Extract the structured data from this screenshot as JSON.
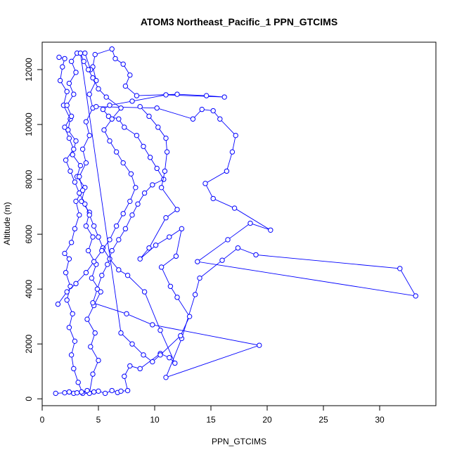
{
  "chart_data": {
    "type": "line",
    "title": "ATOM3 Northeast_Pacific_1 PPN_GTCIMS",
    "xlabel": "PPN_GTCIMS",
    "ylabel": "Altitude (m)",
    "xlim": [
      0,
      35
    ],
    "ylim": [
      -250,
      13000
    ],
    "x_ticks": [
      0,
      5,
      10,
      15,
      20,
      25,
      30
    ],
    "y_ticks": [
      0,
      2000,
      4000,
      6000,
      8000,
      10000,
      12000
    ],
    "grid": false,
    "legend": "none",
    "series": [
      {
        "color": "#0000ff",
        "points": [
          [
            1.5,
            12450
          ],
          [
            2.0,
            12400
          ],
          [
            1.8,
            12100
          ],
          [
            1.6,
            11600
          ],
          [
            2.2,
            11200
          ],
          [
            1.9,
            10700
          ],
          [
            2.5,
            10200
          ],
          [
            2.3,
            9800
          ],
          [
            3.0,
            9400
          ],
          [
            2.7,
            8900
          ],
          [
            3.4,
            8500
          ],
          [
            3.1,
            8100
          ],
          [
            3.8,
            7700
          ],
          [
            3.5,
            7200
          ],
          [
            4.2,
            6800
          ],
          [
            3.9,
            6300
          ],
          [
            4.5,
            5900
          ],
          [
            4.1,
            5400
          ],
          [
            4.8,
            4900
          ],
          [
            4.4,
            4400
          ],
          [
            5.2,
            3900
          ],
          [
            4.6,
            3400
          ],
          [
            4.0,
            2900
          ],
          [
            4.7,
            2400
          ],
          [
            4.3,
            1900
          ],
          [
            5.0,
            1400
          ],
          [
            4.5,
            900
          ],
          [
            4.2,
            200
          ],
          [
            3.6,
            200
          ],
          [
            3.2,
            600
          ],
          [
            2.8,
            1100
          ],
          [
            2.6,
            1600
          ],
          [
            2.9,
            2100
          ],
          [
            2.4,
            2600
          ],
          [
            2.7,
            3100
          ],
          [
            2.2,
            3600
          ],
          [
            2.5,
            4100
          ],
          [
            2.1,
            4600
          ],
          [
            2.4,
            5100
          ],
          [
            2.0,
            5300
          ],
          [
            2.6,
            5700
          ],
          [
            2.9,
            6200
          ],
          [
            3.3,
            6700
          ],
          [
            3.0,
            7200
          ],
          [
            3.6,
            7600
          ],
          [
            3.3,
            8100
          ],
          [
            3.9,
            8600
          ],
          [
            3.6,
            9100
          ],
          [
            4.2,
            9600
          ],
          [
            3.9,
            10100
          ],
          [
            4.5,
            10600
          ],
          [
            4.2,
            11100
          ],
          [
            4.8,
            11600
          ],
          [
            4.5,
            12100
          ],
          [
            4.7,
            12550
          ],
          [
            6.2,
            12750
          ],
          [
            6.5,
            12400
          ],
          [
            7.2,
            12200
          ],
          [
            7.8,
            11800
          ],
          [
            7.4,
            11400
          ],
          [
            8.4,
            11050
          ],
          [
            12.0,
            11100
          ],
          [
            14.6,
            11050
          ],
          [
            16.2,
            11000
          ],
          [
            11.0,
            11080
          ],
          [
            8.0,
            10850
          ],
          [
            6.0,
            10700
          ],
          [
            5.4,
            10550
          ],
          [
            5.9,
            10300
          ],
          [
            6.8,
            10200
          ],
          [
            7.3,
            9900
          ],
          [
            8.4,
            9600
          ],
          [
            9.0,
            9200
          ],
          [
            9.6,
            8800
          ],
          [
            10.2,
            8400
          ],
          [
            10.8,
            8000
          ],
          [
            9.8,
            7800
          ],
          [
            9.1,
            7500
          ],
          [
            8.5,
            7100
          ],
          [
            8.0,
            6700
          ],
          [
            7.4,
            6200
          ],
          [
            6.8,
            5800
          ],
          [
            6.2,
            5400
          ],
          [
            5.8,
            4900
          ],
          [
            5.3,
            4500
          ],
          [
            4.9,
            4000
          ],
          [
            4.5,
            3500
          ],
          [
            7.5,
            3100
          ],
          [
            9.8,
            2700
          ],
          [
            19.3,
            1950
          ],
          [
            11.0,
            780
          ],
          [
            12.4,
            2200
          ],
          [
            13.6,
            3800
          ],
          [
            14.0,
            4400
          ],
          [
            16.0,
            5050
          ],
          [
            17.4,
            5500
          ],
          [
            19.0,
            5250
          ],
          [
            31.8,
            4750
          ],
          [
            33.2,
            3750
          ],
          [
            13.8,
            5000
          ],
          [
            16.5,
            5800
          ],
          [
            18.5,
            6400
          ],
          [
            20.3,
            6150
          ],
          [
            17.1,
            6950
          ],
          [
            15.2,
            7300
          ],
          [
            14.5,
            7850
          ],
          [
            16.4,
            8300
          ],
          [
            16.9,
            9000
          ],
          [
            17.2,
            9600
          ],
          [
            15.8,
            10200
          ],
          [
            15.2,
            10500
          ],
          [
            14.2,
            10550
          ],
          [
            13.4,
            10200
          ],
          [
            10.2,
            10600
          ],
          [
            4.8,
            10650
          ]
        ]
      },
      {
        "color": "#0000ff",
        "points": [
          [
            1.2,
            200
          ],
          [
            2.0,
            220
          ],
          [
            2.4,
            250
          ],
          [
            2.8,
            200
          ],
          [
            3.1,
            220
          ],
          [
            3.5,
            250
          ],
          [
            4.0,
            300
          ],
          [
            4.6,
            250
          ],
          [
            5.0,
            280
          ],
          [
            5.6,
            200
          ],
          [
            6.2,
            300
          ],
          [
            6.7,
            230
          ],
          [
            7.0,
            280
          ],
          [
            7.6,
            300
          ],
          [
            7.3,
            820
          ],
          [
            7.8,
            1200
          ],
          [
            8.7,
            1100
          ],
          [
            10.5,
            1650
          ],
          [
            11.3,
            1500
          ],
          [
            11.8,
            1300
          ],
          [
            10.5,
            2500
          ],
          [
            9.1,
            3900
          ],
          [
            7.6,
            4500
          ],
          [
            6.8,
            4700
          ],
          [
            6.0,
            5100
          ],
          [
            5.4,
            5500
          ],
          [
            5.0,
            5900
          ],
          [
            4.6,
            6300
          ],
          [
            4.2,
            6700
          ],
          [
            3.8,
            7100
          ],
          [
            3.3,
            7500
          ],
          [
            2.9,
            7900
          ],
          [
            2.5,
            8300
          ],
          [
            2.1,
            8700
          ],
          [
            2.8,
            9100
          ],
          [
            2.4,
            9500
          ],
          [
            2.0,
            9900
          ],
          [
            2.6,
            10300
          ],
          [
            2.2,
            10700
          ],
          [
            2.8,
            11100
          ],
          [
            2.4,
            11500
          ],
          [
            3.0,
            11900
          ],
          [
            2.6,
            12300
          ],
          [
            3.1,
            12600
          ],
          [
            3.8,
            12600
          ],
          [
            4.3,
            12000
          ]
        ]
      },
      {
        "color": "#0000ff",
        "points": [
          [
            1.4,
            3450
          ],
          [
            2.2,
            3900
          ],
          [
            3.0,
            4200
          ],
          [
            3.9,
            4600
          ],
          [
            4.6,
            5000
          ],
          [
            5.3,
            5400
          ],
          [
            6.0,
            5800
          ],
          [
            6.6,
            6300
          ],
          [
            7.2,
            6750
          ],
          [
            7.8,
            7200
          ],
          [
            8.3,
            7700
          ],
          [
            7.9,
            8200
          ],
          [
            7.2,
            8600
          ],
          [
            6.6,
            9000
          ],
          [
            6.0,
            9400
          ],
          [
            5.5,
            9800
          ],
          [
            6.2,
            10200
          ],
          [
            7.0,
            10600
          ],
          [
            5.7,
            11000
          ],
          [
            5.0,
            11300
          ],
          [
            4.5,
            11700
          ],
          [
            4.1,
            12000
          ],
          [
            3.7,
            12300
          ],
          [
            3.4,
            12600
          ],
          [
            7.0,
            2400
          ],
          [
            8.0,
            2000
          ],
          [
            9.0,
            1600
          ],
          [
            9.8,
            1350
          ],
          [
            10.5,
            1600
          ],
          [
            12.3,
            2300
          ],
          [
            13.1,
            3000
          ],
          [
            12.0,
            3700
          ],
          [
            11.4,
            4100
          ],
          [
            10.6,
            4800
          ],
          [
            11.9,
            5200
          ],
          [
            12.4,
            6200
          ],
          [
            11.3,
            5900
          ],
          [
            10.1,
            5600
          ],
          [
            8.7,
            5100
          ],
          [
            9.5,
            5500
          ],
          [
            11.0,
            6600
          ],
          [
            12.0,
            6900
          ],
          [
            10.6,
            7700
          ],
          [
            10.9,
            8300
          ],
          [
            11.1,
            9000
          ],
          [
            11.0,
            9500
          ],
          [
            10.3,
            9900
          ],
          [
            9.5,
            10300
          ],
          [
            8.7,
            10650
          ]
        ]
      }
    ]
  }
}
